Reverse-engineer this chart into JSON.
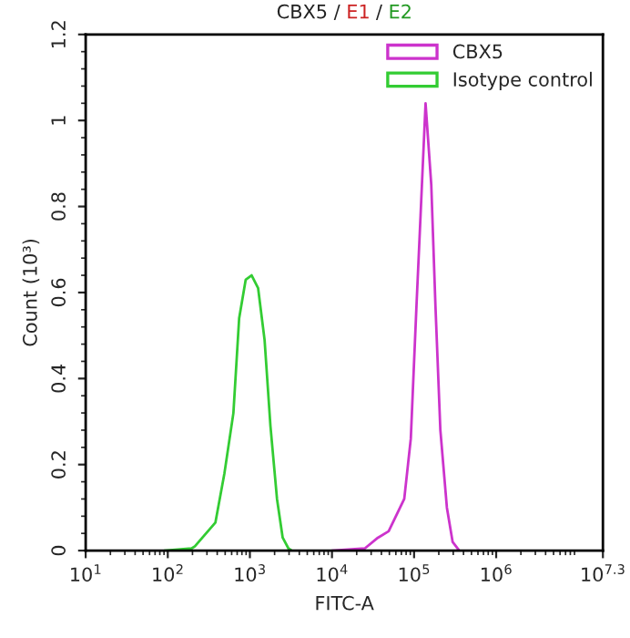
{
  "chart_data": {
    "type": "line",
    "title": "CBX5 / E1 / E2",
    "xlabel": "FITC-A",
    "ylabel": "Count (10³)",
    "log": "x",
    "xlim": [
      10,
      19952623
    ],
    "xticks": [
      {
        "value": 10,
        "label": "10$^{1}$"
      },
      {
        "value": 100,
        "label": "10$^{2}$"
      },
      {
        "value": 1000,
        "label": "10$^{3}$"
      },
      {
        "value": 10000,
        "label": "10$^{4}$"
      },
      {
        "value": 100000,
        "label": "10$^{5}$"
      },
      {
        "value": 1000000,
        "label": "10$^{6}$"
      },
      {
        "value": 19952623,
        "label": "10$^{7.3}$"
      }
    ],
    "ylim": [
      0,
      1.2
    ],
    "yticks": [
      0,
      0.2,
      0.4,
      0.6,
      0.8,
      1,
      1.2
    ],
    "grid": false,
    "legend": "top right",
    "marker": "none",
    "line_style": "solid",
    "series": [
      {
        "name": "CBX5",
        "color": "#cc33cc",
        "x": [
          10000,
          25100,
          36300,
          49000,
          75900,
          91200,
          107000,
          120000,
          138000,
          162000,
          182000,
          209000,
          251000,
          295000,
          355000
        ],
        "values": [
          0,
          0.005,
          0.03,
          0.045,
          0.12,
          0.26,
          0.57,
          0.78,
          1.04,
          0.85,
          0.57,
          0.28,
          0.1,
          0.02,
          0
        ]
      },
      {
        "name": "Isotype control",
        "color": "#33cc33",
        "x": [
          91,
          195,
          214,
          380,
          490,
          630,
          740,
          890,
          1050,
          1260,
          1510,
          1780,
          2140,
          2510,
          2950,
          3240
        ],
        "values": [
          0,
          0.005,
          0.01,
          0.065,
          0.18,
          0.32,
          0.54,
          0.63,
          0.64,
          0.61,
          0.49,
          0.29,
          0.12,
          0.03,
          0.005,
          0
        ]
      }
    ]
  }
}
